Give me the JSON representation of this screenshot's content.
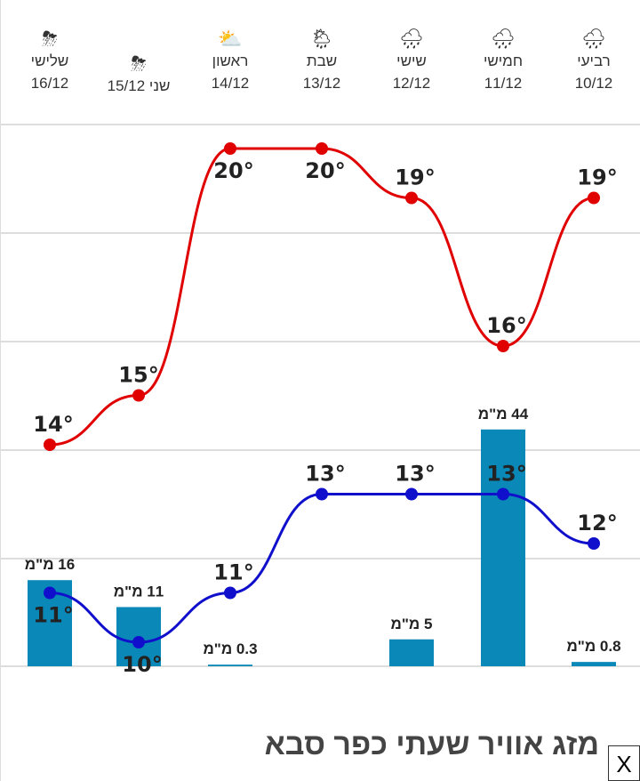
{
  "chart_data": {
    "type": "line",
    "categories": [
      "16/12",
      "15/12",
      "14/12",
      "13/12",
      "12/12",
      "11/12",
      "10/12"
    ],
    "day_names": [
      "שלישי",
      "שני",
      "ראשון",
      "שבת",
      "שישי",
      "חמישי",
      "רביעי"
    ],
    "icons": [
      "rain-thunder",
      "rain-thunder",
      "partly-cloudy",
      "rain-sun",
      "rain",
      "rain",
      "rain"
    ],
    "series": [
      {
        "name": "high",
        "color": "#e00000",
        "values": [
          14,
          15,
          20,
          20,
          19,
          16,
          19
        ]
      },
      {
        "name": "low",
        "color": "#1010cc",
        "values": [
          11,
          10,
          11,
          13,
          13,
          13,
          12
        ]
      }
    ],
    "rain": {
      "color": "#0a88b8",
      "unit": "מ\"מ",
      "values": [
        16,
        11,
        0.3,
        null,
        5,
        44,
        0.8
      ]
    },
    "temp_unit": "°"
  },
  "title": "מזג אוויר שעתי כפר סבא",
  "close_label": "X"
}
